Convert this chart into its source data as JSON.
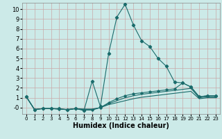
{
  "xlabel": "Humidex (Indice chaleur)",
  "background_color": "#cceae8",
  "grid_color": "#c8a8a8",
  "line_color": "#1a6b6b",
  "xlim": [
    -0.5,
    23.5
  ],
  "ylim": [
    -0.65,
    10.65
  ],
  "xticks": [
    0,
    1,
    2,
    3,
    4,
    5,
    6,
    7,
    8,
    9,
    10,
    11,
    12,
    13,
    14,
    15,
    16,
    17,
    18,
    19,
    20,
    21,
    22,
    23
  ],
  "yticks": [
    0,
    1,
    2,
    3,
    4,
    5,
    6,
    7,
    8,
    9,
    10
  ],
  "ytick_labels": [
    "-0",
    "1",
    "2",
    "3",
    "4",
    "5",
    "6",
    "7",
    "8",
    "9",
    "10"
  ],
  "series": [
    {
      "x": [
        0,
        1,
        2,
        3,
        4,
        5,
        6,
        7,
        8,
        9,
        10,
        11,
        12,
        13,
        14,
        15,
        16,
        17,
        18,
        19,
        20,
        21,
        22,
        23
      ],
      "y": [
        1.1,
        -0.2,
        -0.1,
        -0.1,
        -0.1,
        -0.25,
        -0.1,
        -0.3,
        2.7,
        0.1,
        5.5,
        9.2,
        10.5,
        8.4,
        6.8,
        6.2,
        5.0,
        4.2,
        2.6,
        2.5,
        2.1,
        1.1,
        1.2,
        1.2
      ],
      "marker": "D",
      "markersize": 2.2,
      "lw": 0.8
    },
    {
      "x": [
        0,
        1,
        2,
        3,
        4,
        5,
        6,
        7,
        8,
        9,
        10,
        11,
        12,
        13,
        14,
        15,
        16,
        17,
        18,
        19,
        20,
        21,
        22,
        23
      ],
      "y": [
        1.1,
        -0.2,
        -0.1,
        -0.1,
        -0.15,
        -0.2,
        -0.1,
        -0.25,
        -0.25,
        0.0,
        0.5,
        0.9,
        1.2,
        1.4,
        1.5,
        1.6,
        1.7,
        1.8,
        1.9,
        2.5,
        2.1,
        1.1,
        1.2,
        1.2
      ],
      "marker": "D",
      "markersize": 1.8,
      "lw": 0.8
    },
    {
      "x": [
        0,
        1,
        2,
        3,
        4,
        5,
        6,
        7,
        8,
        9,
        10,
        11,
        12,
        13,
        14,
        15,
        16,
        17,
        18,
        19,
        20,
        21,
        22,
        23
      ],
      "y": [
        1.1,
        -0.2,
        -0.1,
        -0.1,
        -0.15,
        -0.2,
        -0.1,
        -0.2,
        -0.2,
        0.0,
        0.4,
        0.7,
        1.0,
        1.2,
        1.35,
        1.45,
        1.55,
        1.65,
        1.75,
        1.85,
        1.95,
        1.0,
        1.1,
        1.1
      ],
      "marker": null,
      "markersize": 0,
      "lw": 0.8
    },
    {
      "x": [
        0,
        1,
        2,
        3,
        4,
        5,
        6,
        7,
        8,
        9,
        10,
        11,
        12,
        13,
        14,
        15,
        16,
        17,
        18,
        19,
        20,
        21,
        22,
        23
      ],
      "y": [
        1.1,
        -0.2,
        -0.1,
        -0.1,
        -0.15,
        -0.2,
        -0.1,
        -0.15,
        -0.15,
        0.0,
        0.3,
        0.5,
        0.7,
        0.9,
        1.05,
        1.15,
        1.25,
        1.35,
        1.45,
        1.55,
        1.65,
        0.9,
        1.0,
        1.0
      ],
      "marker": null,
      "markersize": 0,
      "lw": 0.8
    }
  ]
}
